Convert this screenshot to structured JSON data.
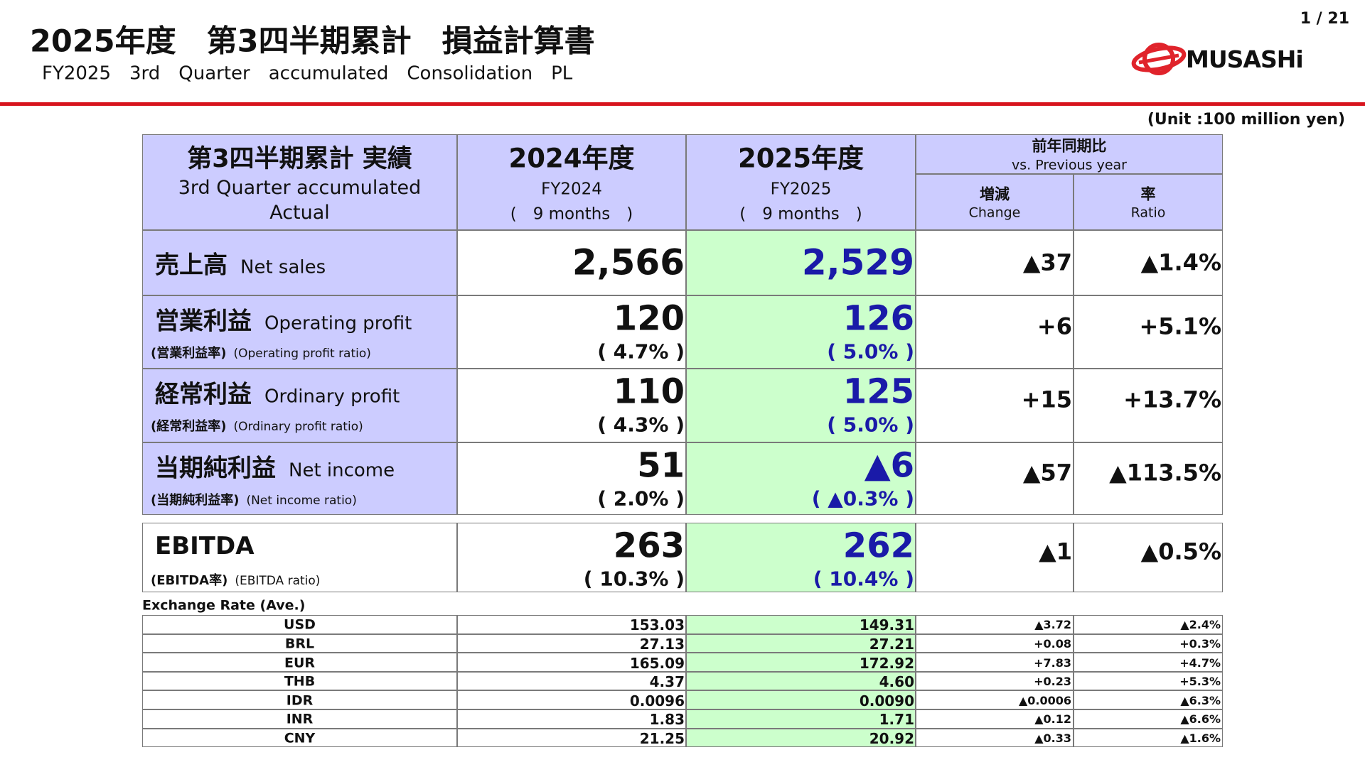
{
  "header": {
    "title": "2025年度　第3四半期累計　損益計算書",
    "subtitle": "FY2025　3rd　Quarter　accumulated　Consolidation　PL",
    "page": "1 / 21",
    "logo": "MUSASHi"
  },
  "unit": "(Unit :100 million yen)",
  "table": {
    "head": {
      "item_ja": "第3四半期累計 実績",
      "item_en_lines": [
        "3rd Quarter accumulated",
        "Actual"
      ],
      "fy2024_ja": "2024年度",
      "fy2024_en": "FY2024",
      "fy2024_period": "(　9 months　)",
      "fy2025_ja": "2025年度",
      "fy2025_en": "FY2025",
      "fy2025_period": "(　9 months　)",
      "compare_ja": "前年同期比",
      "compare_en": "vs. Previous year",
      "change_ja": "増減",
      "change_en": "Change",
      "ratio_ja": "率",
      "ratio_en": "Ratio"
    },
    "rows": [
      {
        "label_ja": "売上高",
        "label_en": "Net sales",
        "fy2024": "2,566",
        "fy2025": "2,529",
        "change": "▲37",
        "ratio": "▲1.4%"
      },
      {
        "label_ja": "営業利益",
        "label_en": "Operating profit",
        "sub_ja": "(営業利益率)",
        "sub_en": "(Operating profit ratio)",
        "fy2024": "120",
        "fy2024_sub": "( 4.7% )",
        "fy2025": "126",
        "fy2025_sub": "( 5.0% )",
        "change": "+6",
        "ratio": "+5.1%"
      },
      {
        "label_ja": "経常利益",
        "label_en": "Ordinary profit",
        "sub_ja": "(経常利益率)",
        "sub_en": "(Ordinary profit ratio)",
        "fy2024": "110",
        "fy2024_sub": "( 4.3% )",
        "fy2025": "125",
        "fy2025_sub": "( 5.0% )",
        "change": "+15",
        "ratio": "+13.7%"
      },
      {
        "label_ja": "当期純利益",
        "label_en": "Net income",
        "sub_ja": "(当期純利益率)",
        "sub_en": "(Net income ratio)",
        "fy2024": "51",
        "fy2024_sub": "( 2.0% )",
        "fy2025": "▲6",
        "fy2025_sub": "( ▲0.3% )",
        "change": "▲57",
        "ratio": "▲113.5%"
      }
    ],
    "ebitda": {
      "label_ja": "EBITDA",
      "sub_ja": "(EBITDA率)",
      "sub_en": "(EBITDA ratio)",
      "fy2024": "263",
      "fy2024_sub": "( 10.3% )",
      "fy2025": "262",
      "fy2025_sub": "( 10.4% )",
      "change": "▲1",
      "ratio": "▲0.5%"
    }
  },
  "fx": {
    "title": "Exchange Rate (Ave.)",
    "rows": [
      [
        "USD",
        "153.03",
        "149.31",
        "▲3.72",
        "▲2.4%"
      ],
      [
        "BRL",
        "27.13",
        "27.21",
        "+0.08",
        "+0.3%"
      ],
      [
        "EUR",
        "165.09",
        "172.92",
        "+7.83",
        "+4.7%"
      ],
      [
        "THB",
        "4.37",
        "4.60",
        "+0.23",
        "+5.3%"
      ],
      [
        "IDR",
        "0.0096",
        "0.0090",
        "▲0.0006",
        "▲6.3%"
      ],
      [
        "INR",
        "1.83",
        "1.71",
        "▲0.12",
        "▲6.6%"
      ],
      [
        "CNY",
        "21.25",
        "20.92",
        "▲0.33",
        "▲1.6%"
      ]
    ]
  }
}
